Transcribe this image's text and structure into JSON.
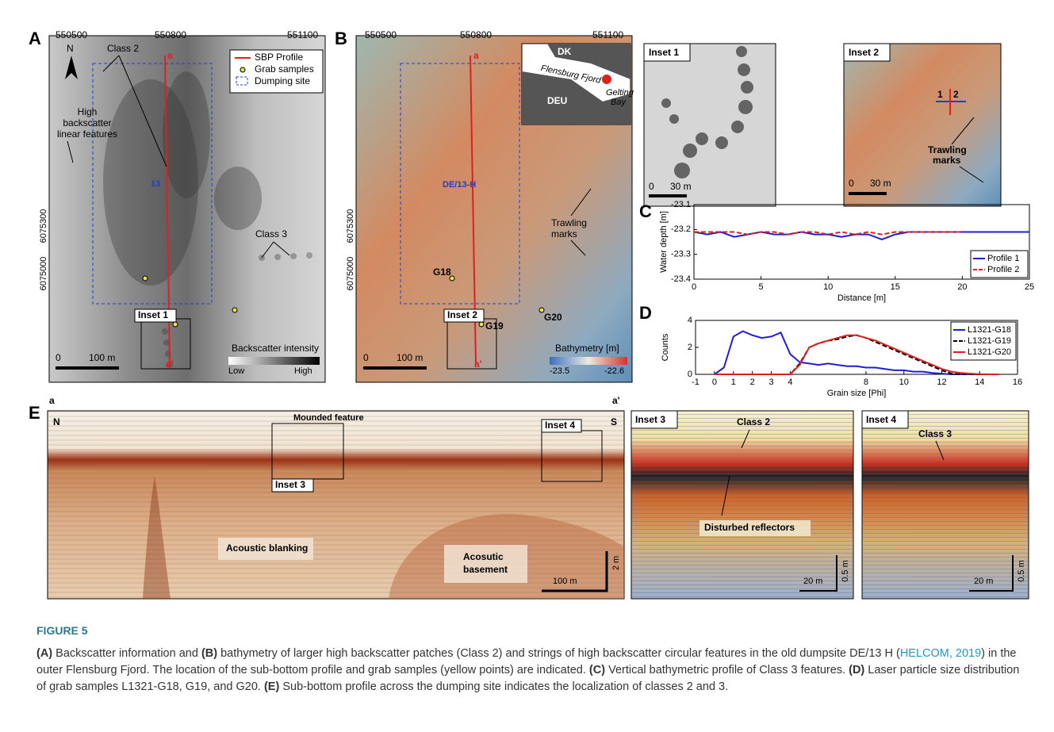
{
  "chart_data": [
    {
      "type": "line",
      "label": "C",
      "x_label": "Distance [m]",
      "y_label": "Water depth [m]",
      "x": [
        0,
        1,
        2,
        3,
        4,
        5,
        6,
        7,
        8,
        9,
        10,
        11,
        12,
        13,
        14,
        15,
        16,
        17,
        18,
        19,
        20,
        21,
        22,
        23,
        24,
        25
      ],
      "series": [
        {
          "name": "Profile 1",
          "color": "#1f1fd0",
          "dash": false,
          "values": [
            -23.21,
            -23.22,
            -23.21,
            -23.23,
            -23.22,
            -23.21,
            -23.22,
            -23.22,
            -23.21,
            -23.22,
            -23.22,
            -23.23,
            -23.22,
            -23.22,
            -23.24,
            -23.22,
            -23.21,
            -23.21,
            -23.21,
            -23.21,
            -23.21,
            -23.21,
            -23.21,
            -23.21,
            -23.21,
            -23.21
          ]
        },
        {
          "name": "Profile 2",
          "color": "#e01f1f",
          "dash": true,
          "values": [
            -23.21,
            -23.21,
            -23.21,
            -23.21,
            -23.22,
            -23.21,
            -23.21,
            -23.22,
            -23.21,
            -23.21,
            -23.22,
            -23.21,
            -23.22,
            -23.21,
            -23.22,
            -23.21,
            -23.21,
            -23.21,
            -23.21,
            -23.21,
            -23.21,
            null,
            null,
            null,
            null,
            null
          ]
        }
      ],
      "xlim": [
        0,
        25
      ],
      "xticks": [
        0,
        5,
        10,
        15,
        20,
        25
      ],
      "ylim": [
        -23.4,
        -23.1
      ],
      "yticks": [
        -23.1,
        -23.2,
        -23.3,
        -23.4
      ],
      "grid": false,
      "legend": "lower right"
    },
    {
      "type": "line",
      "label": "D",
      "x_label": "Grain size [Phi]",
      "y_label": "Counts",
      "x": [
        0,
        0.5,
        1,
        1.5,
        2,
        2.5,
        3,
        3.5,
        4,
        4.5,
        5,
        5.5,
        6,
        6.5,
        7,
        7.5,
        8,
        8.5,
        9,
        9.5,
        10,
        10.5,
        11,
        11.5,
        12,
        12.5,
        13,
        13.5,
        14,
        14.5,
        15
      ],
      "series": [
        {
          "name": "L1321-G18",
          "color": "#1f1fd0",
          "dash": false,
          "values": [
            0,
            0.5,
            2.8,
            3.2,
            2.9,
            2.7,
            2.8,
            3.1,
            1.5,
            0.9,
            0.8,
            0.7,
            0.8,
            0.7,
            0.6,
            0.6,
            0.5,
            0.5,
            0.4,
            0.3,
            0.3,
            0.2,
            0.2,
            0.1,
            0.05,
            0,
            0,
            0,
            0,
            0,
            0
          ]
        },
        {
          "name": "L1321-G19",
          "color": "#000000",
          "dash": true,
          "values": [
            0,
            0,
            0,
            0,
            0,
            0,
            0,
            0,
            0,
            0.8,
            2.0,
            2.3,
            2.5,
            2.6,
            2.8,
            2.9,
            2.7,
            2.4,
            2.1,
            1.8,
            1.5,
            1.2,
            0.9,
            0.6,
            0.3,
            0.05,
            0,
            0,
            0,
            0,
            0
          ]
        },
        {
          "name": "L1321-G20",
          "color": "#e01f1f",
          "dash": false,
          "values": [
            0,
            0,
            0,
            0,
            0,
            0,
            0,
            0,
            0,
            0.7,
            2.0,
            2.3,
            2.5,
            2.7,
            2.9,
            2.9,
            2.7,
            2.5,
            2.2,
            1.9,
            1.6,
            1.3,
            1.0,
            0.7,
            0.4,
            0.2,
            0.1,
            0.05,
            0.02,
            0,
            0
          ]
        }
      ],
      "xlim": [
        -1,
        16
      ],
      "xticks": [
        -1,
        0,
        1,
        2,
        3,
        4,
        8,
        10,
        12,
        14,
        16
      ],
      "ylim": [
        0,
        4
      ],
      "yticks": [
        0,
        2,
        4
      ],
      "grid": false,
      "legend": "upper right"
    }
  ],
  "panels": {
    "A": {
      "label": "A",
      "xticks": [
        "550500",
        "550800",
        "551100"
      ],
      "yticks": [
        "6075300",
        "6075000"
      ],
      "north": "N",
      "legend": [
        "SBP Profile",
        "Grab samples",
        "Dumping site"
      ],
      "annotations": [
        "Class 2",
        "High",
        "backscatter",
        "linear features",
        "Class 3",
        "13",
        "a",
        "a'",
        "Inset 1"
      ],
      "scalebar": [
        "0",
        "100 m"
      ],
      "colorbar": [
        "Backscatter intensity",
        "Low",
        "High"
      ]
    },
    "B": {
      "label": "B",
      "xticks": [
        "550500",
        "550800",
        "551100"
      ],
      "yticks": [
        "6075300",
        "6075000"
      ],
      "map": [
        "DK",
        "DEU",
        "Flensburg Fjord",
        "Gelting",
        "Bay"
      ],
      "annotations": [
        "DE/13-H",
        "Trawling",
        "marks",
        "G18",
        "G19",
        "G20",
        "Inset 2",
        "a",
        "a'"
      ],
      "scalebar": [
        "0",
        "100 m"
      ],
      "colorbar": [
        "Bathymetry [m]",
        "-23.5",
        "-22.6"
      ]
    },
    "inset1": {
      "title": "Inset 1",
      "scalebar": [
        "0",
        "30 m"
      ]
    },
    "inset2": {
      "title": "Inset 2",
      "profiles": [
        "1",
        "2"
      ],
      "annotations": [
        "Trawling",
        "marks"
      ],
      "scalebar": [
        "0",
        "30 m"
      ]
    },
    "E": {
      "label": "E",
      "ends": [
        "a",
        "a'"
      ],
      "directions": [
        "N",
        "S"
      ],
      "annotations": [
        "Mounded feature",
        "Inset 4",
        "Inset 3",
        "Acoustic blanking",
        "Acosutic",
        "basement"
      ],
      "scalebar": [
        "100 m",
        "2 m"
      ]
    },
    "inset3": {
      "title": "Inset 3",
      "annotations": [
        "Class 2",
        "Disturbed reflectors"
      ],
      "scalebar": [
        "20 m",
        "0.5 m"
      ]
    },
    "inset4": {
      "title": "Inset 4",
      "annotations": [
        "Class 3"
      ],
      "scalebar": [
        "20 m",
        "0.5 m"
      ]
    }
  },
  "caption": {
    "title": "FIGURE 5",
    "segments": [
      "(A)",
      " Backscatter information and ",
      "(B)",
      " bathymetry of larger high backscatter patches (Class 2) and strings of high backscatter circular features in the old dumpsite DE/13 H (",
      "HELCOM, 2019",
      ") in the outer Flensburg Fjord. The location of the sub-bottom profile and grab samples (yellow points) are indicated. ",
      "(C)",
      " Vertical bathymetric profile of Class 3 features. ",
      "(D)",
      " Laser particle size distribution of grab samples L1321-G18, G19, and G20. ",
      "(E)",
      " Sub-bottom profile across the dumping site indicates the localization of classes 2 and 3."
    ]
  }
}
